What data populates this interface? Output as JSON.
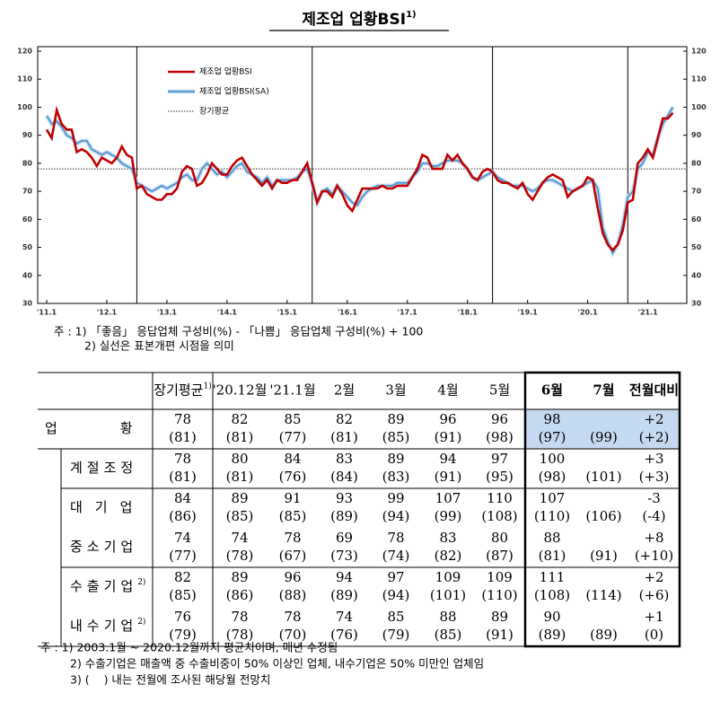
{
  "chart_data": {
    "type": "line",
    "title": "제조업 업황BSI",
    "title_note": "1)",
    "categories": [
      "'11.1",
      null,
      null,
      null,
      null,
      null,
      null,
      null,
      null,
      null,
      null,
      null,
      "'12.1",
      null,
      null,
      null,
      null,
      null,
      null,
      null,
      null,
      null,
      null,
      null,
      "'13.1",
      null,
      null,
      null,
      null,
      null,
      null,
      null,
      null,
      null,
      null,
      null,
      "'14.1",
      null,
      null,
      null,
      null,
      null,
      null,
      null,
      null,
      null,
      null,
      null,
      "'15.1",
      null,
      null,
      null,
      null,
      null,
      null,
      null,
      null,
      null,
      null,
      null,
      "'16.1",
      null,
      null,
      null,
      null,
      null,
      null,
      null,
      null,
      null,
      null,
      null,
      "'17.1",
      null,
      null,
      null,
      null,
      null,
      null,
      null,
      null,
      null,
      null,
      null,
      "'18.1",
      null,
      null,
      null,
      null,
      null,
      null,
      null,
      null,
      null,
      null,
      null,
      "'19.1",
      null,
      null,
      null,
      null,
      null,
      null,
      null,
      null,
      null,
      null,
      null,
      "'20.1",
      null,
      null,
      null,
      null,
      null,
      null,
      null,
      null,
      null,
      null,
      null,
      "'21.1",
      null,
      null,
      null,
      null,
      null
    ],
    "series": [
      {
        "name": "제조업 업황BSI",
        "color": "#c00000",
        "values": [
          92,
          89,
          99,
          94,
          92,
          92,
          84,
          85,
          84,
          82,
          79,
          82,
          81,
          80,
          82,
          86,
          83,
          82,
          71,
          72,
          69,
          68,
          67,
          67,
          69,
          69,
          71,
          77,
          79,
          78,
          72,
          73,
          76,
          80,
          78,
          76,
          76,
          79,
          81,
          82,
          79,
          76,
          74,
          72,
          74,
          71,
          74,
          73,
          73,
          74,
          74,
          77,
          80,
          73,
          66,
          70,
          70,
          68,
          72,
          69,
          65,
          63,
          67,
          71,
          71,
          71,
          71,
          72,
          71,
          71,
          72,
          72,
          72,
          75,
          78,
          83,
          82,
          78,
          78,
          78,
          83,
          81,
          83,
          80,
          78,
          75,
          74,
          77,
          78,
          77,
          74,
          73,
          73,
          72,
          71,
          73,
          69,
          67,
          70,
          73,
          75,
          76,
          75,
          74,
          68,
          70,
          71,
          72,
          75,
          74,
          64,
          55,
          51,
          49,
          51,
          56,
          66,
          67,
          80,
          82,
          85,
          82,
          89,
          96,
          96,
          98
        ]
      },
      {
        "name": "제조업 업황BSI(SA)",
        "color": "#3d85c6",
        "values": [
          97,
          94,
          95,
          93,
          90,
          89,
          87,
          88,
          88,
          85,
          84,
          83,
          84,
          83,
          82,
          80,
          79,
          78,
          73,
          72,
          71,
          70,
          71,
          72,
          71,
          72,
          73,
          75,
          76,
          74,
          74,
          78,
          80,
          78,
          76,
          77,
          75,
          77,
          79,
          80,
          77,
          76,
          75,
          73,
          75,
          72,
          74,
          74,
          74,
          74,
          75,
          77,
          78,
          73,
          66,
          70,
          71,
          69,
          72,
          70,
          68,
          66,
          65,
          68,
          70,
          71,
          72,
          72,
          72,
          72,
          73,
          73,
          73,
          75,
          77,
          80,
          80,
          79,
          79,
          80,
          81,
          81,
          81,
          80,
          78,
          75,
          74,
          75,
          76,
          77,
          75,
          74,
          73,
          72,
          72,
          72,
          71,
          70,
          71,
          73,
          74,
          74,
          73,
          72,
          71,
          70,
          71,
          72,
          73,
          74,
          71,
          57,
          52,
          48,
          51,
          58,
          68,
          70,
          78,
          80,
          84,
          83,
          89,
          94,
          97,
          100
        ]
      }
    ],
    "hline": {
      "name": "장기평균",
      "value": 78
    },
    "vlines": [
      18,
      53,
      89,
      116
    ],
    "ylim": [
      30,
      120
    ],
    "yticks": [
      30,
      40,
      50,
      60,
      70,
      80,
      90,
      100,
      110,
      120
    ],
    "y2lim": [
      30,
      120
    ],
    "y2ticks": [
      30,
      40,
      50,
      60,
      70,
      80,
      90,
      100,
      110,
      120
    ]
  },
  "chart_notes": [
    "주 : 1) 「좋음」 응답업체 구성비(%) - 「나쁨」 응답업체 구성비(%) + 100",
    "2) 실선은 표본개편 시점을 의미"
  ],
  "table": {
    "header": [
      {
        "text": "장기평균",
        "note": "1)"
      },
      {
        "text": "'20.12월"
      },
      {
        "text": "'21.1월"
      },
      {
        "text": "2월"
      },
      {
        "text": "3월"
      },
      {
        "text": "4월"
      },
      {
        "text": "5월"
      },
      {
        "text": "6월"
      },
      {
        "text": "7월"
      },
      {
        "text": "전월대비"
      }
    ],
    "rows": [
      {
        "label": "업황",
        "cells": [
          [
            "78",
            "(81)"
          ],
          [
            "82",
            "(81)"
          ],
          [
            "85",
            "(77)"
          ],
          [
            "82",
            "(81)"
          ],
          [
            "89",
            "(85)"
          ],
          [
            "96",
            "(91)"
          ],
          [
            "96",
            "(98)"
          ],
          [
            "98",
            "(97)"
          ],
          [
            null,
            "(99)"
          ],
          [
            "+2",
            "(+2)"
          ]
        ]
      },
      {
        "label": "계절조정",
        "cells": [
          [
            "78",
            "(81)"
          ],
          [
            "80",
            "(81)"
          ],
          [
            "84",
            "(76)"
          ],
          [
            "83",
            "(84)"
          ],
          [
            "89",
            "(83)"
          ],
          [
            "94",
            "(91)"
          ],
          [
            "97",
            "(95)"
          ],
          [
            "100",
            "(98)"
          ],
          [
            null,
            "(101)"
          ],
          [
            "+3",
            "(+3)"
          ]
        ]
      },
      {
        "label": "대기업",
        "cells": [
          [
            "84",
            "(86)"
          ],
          [
            "89",
            "(85)"
          ],
          [
            "91",
            "(85)"
          ],
          [
            "93",
            "(89)"
          ],
          [
            "99",
            "(94)"
          ],
          [
            "107",
            "(99)"
          ],
          [
            "110",
            "(108)"
          ],
          [
            "107",
            "(110)"
          ],
          [
            null,
            "(106)"
          ],
          [
            "-3",
            "(-4)"
          ]
        ]
      },
      {
        "label": "중소기업",
        "cells": [
          [
            "74",
            "(77)"
          ],
          [
            "74",
            "(78)"
          ],
          [
            "78",
            "(67)"
          ],
          [
            "69",
            "(73)"
          ],
          [
            "78",
            "(74)"
          ],
          [
            "83",
            "(82)"
          ],
          [
            "80",
            "(87)"
          ],
          [
            "88",
            "(81)"
          ],
          [
            null,
            "(91)"
          ],
          [
            "+8",
            "(+10)"
          ]
        ]
      },
      {
        "label": "수출기업",
        "note": "2)",
        "cells": [
          [
            "82",
            "(85)"
          ],
          [
            "89",
            "(86)"
          ],
          [
            "96",
            "(88)"
          ],
          [
            "94",
            "(89)"
          ],
          [
            "97",
            "(94)"
          ],
          [
            "109",
            "(101)"
          ],
          [
            "109",
            "(110)"
          ],
          [
            "111",
            "(108)"
          ],
          [
            null,
            "(114)"
          ],
          [
            "+2",
            "(+6)"
          ]
        ]
      },
      {
        "label": "내수기업",
        "note": "2)",
        "cells": [
          [
            "76",
            "(79)"
          ],
          [
            "78",
            "(78)"
          ],
          [
            "78",
            "(70)"
          ],
          [
            "74",
            "(76)"
          ],
          [
            "85",
            "(79)"
          ],
          [
            "88",
            "(85)"
          ],
          [
            "89",
            "(91)"
          ],
          [
            "90",
            "(89)"
          ],
          [
            null,
            "(89)"
          ],
          [
            "+1",
            "(0)"
          ]
        ]
      }
    ]
  },
  "table_notes": [
    "주 : 1) 2003.1월 ~ 2020.12월까지 평균치이며, 매년 수정됨",
    "2) 수출기업은 매출액 중 수출비중이 50% 이상인 업체, 내수기업은 50% 미만인 업체임",
    "3) (    ) 내는 전월에 조사된 해당월 전망치"
  ]
}
